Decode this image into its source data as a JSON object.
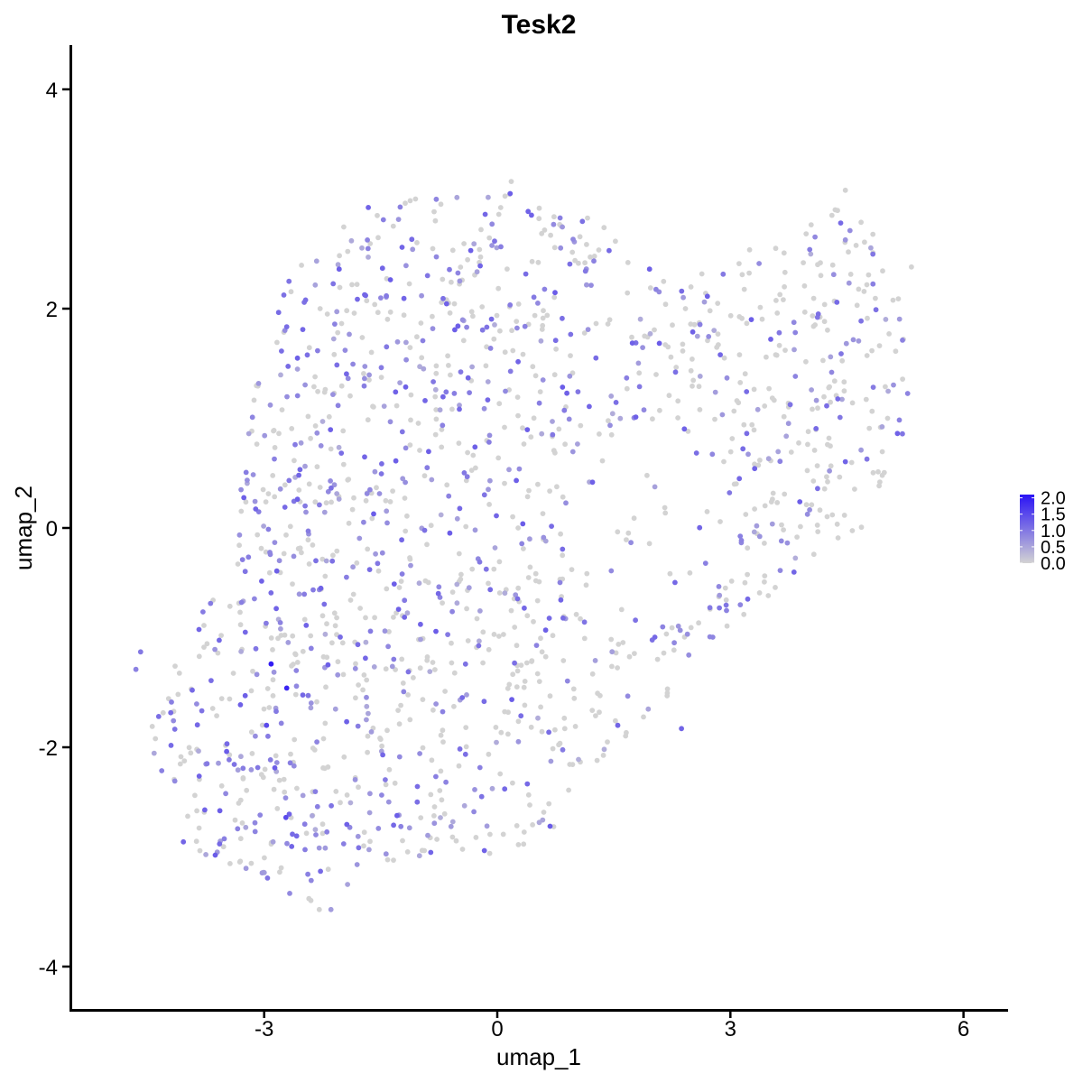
{
  "chart_data": {
    "type": "scatter",
    "title": "Tesk2",
    "xlabel": "umap_1",
    "ylabel": "umap_2",
    "xlim": [
      -5.4,
      6.5
    ],
    "ylim": [
      -4.4,
      4.4
    ],
    "x_ticks": [
      -3,
      0,
      3,
      6
    ],
    "y_ticks": [
      -4,
      -2,
      0,
      2,
      4
    ],
    "x_tick_labels": [
      "-3",
      "0",
      "3",
      "6"
    ],
    "y_tick_labels": [
      "-4",
      "-2",
      "0",
      "2",
      "4"
    ],
    "grid": false,
    "legend": {
      "placement": "right",
      "type": "colorbar",
      "labels": [
        "2.0",
        "1.5",
        "1.0",
        "0.5",
        "0.0"
      ],
      "values": [
        2.0,
        1.5,
        1.0,
        0.5,
        0.0
      ],
      "range": [
        0,
        2.1
      ],
      "low_color": "#d3d3d3",
      "high_color": "#2a13f5"
    },
    "point_count": 1600,
    "points_sample": [
      {
        "x": -2.91,
        "y": -1.24,
        "expr": 2.0
      },
      {
        "x": -2.71,
        "y": -1.46,
        "expr": 1.9
      },
      {
        "x": -2.97,
        "y": -1.8,
        "expr": 1.5
      },
      {
        "x": -2.72,
        "y": -2.64,
        "expr": 1.5
      },
      {
        "x": 1.55,
        "y": -1.8,
        "expr": 1.2
      },
      {
        "x": 2.37,
        "y": -1.83,
        "expr": 1.2
      },
      {
        "x": 0.68,
        "y": -2.72,
        "expr": 1.3
      },
      {
        "x": -4.59,
        "y": -1.13,
        "expr": 1.0
      },
      {
        "x": -4.65,
        "y": -1.29,
        "expr": 0.9
      },
      {
        "x": 4.48,
        "y": 3.08,
        "expr": 0.0
      },
      {
        "x": 0.18,
        "y": 3.16,
        "expr": 0.0
      },
      {
        "x": -2.29,
        "y": -3.48,
        "expr": 0.0
      },
      {
        "x": -2.14,
        "y": -3.48,
        "expr": 0.6
      },
      {
        "x": 5.33,
        "y": 2.38,
        "expr": 0.0
      },
      {
        "x": -4.44,
        "y": -1.81,
        "expr": 0.0
      }
    ]
  }
}
